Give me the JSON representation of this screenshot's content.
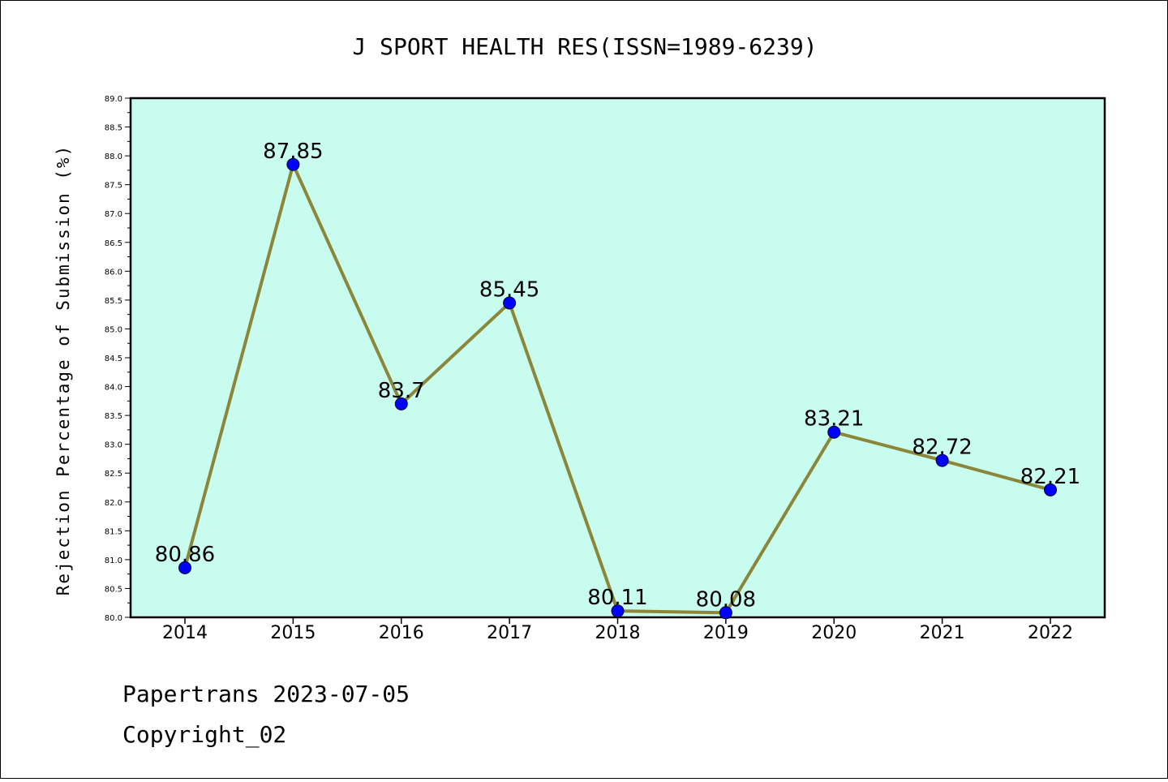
{
  "chart_data": {
    "type": "line",
    "title": "J SPORT HEALTH RES(ISSN=1989-6239)",
    "xlabel": "",
    "ylabel": "Rejection Percentage of Submission (%)",
    "categories": [
      "2014",
      "2015",
      "2016",
      "2017",
      "2018",
      "2019",
      "2020",
      "2021",
      "2022"
    ],
    "values": [
      80.86,
      87.85,
      83.7,
      85.45,
      80.11,
      80.08,
      83.21,
      82.72,
      82.21
    ],
    "data_labels": [
      "80.86",
      "87.85",
      "83.7",
      "85.45",
      "80.11",
      "80.08",
      "83.21",
      "82.72",
      "82.21"
    ],
    "ylim": [
      80.0,
      89.0
    ],
    "yticks": [
      "80.0",
      "80.5",
      "81.0",
      "81.5",
      "82.0",
      "82.5",
      "83.0",
      "83.5",
      "84.0",
      "84.5",
      "85.0",
      "85.5",
      "86.0",
      "86.5",
      "87.0",
      "87.5",
      "88.0",
      "88.5",
      "89.0"
    ],
    "grid": false,
    "colors": {
      "plot_background": "#c8fcee",
      "line": "#8b8639",
      "marker": "#0000ff"
    }
  },
  "footer": {
    "line1": "Papertrans 2023-07-05",
    "line2": "Copyright_02"
  }
}
